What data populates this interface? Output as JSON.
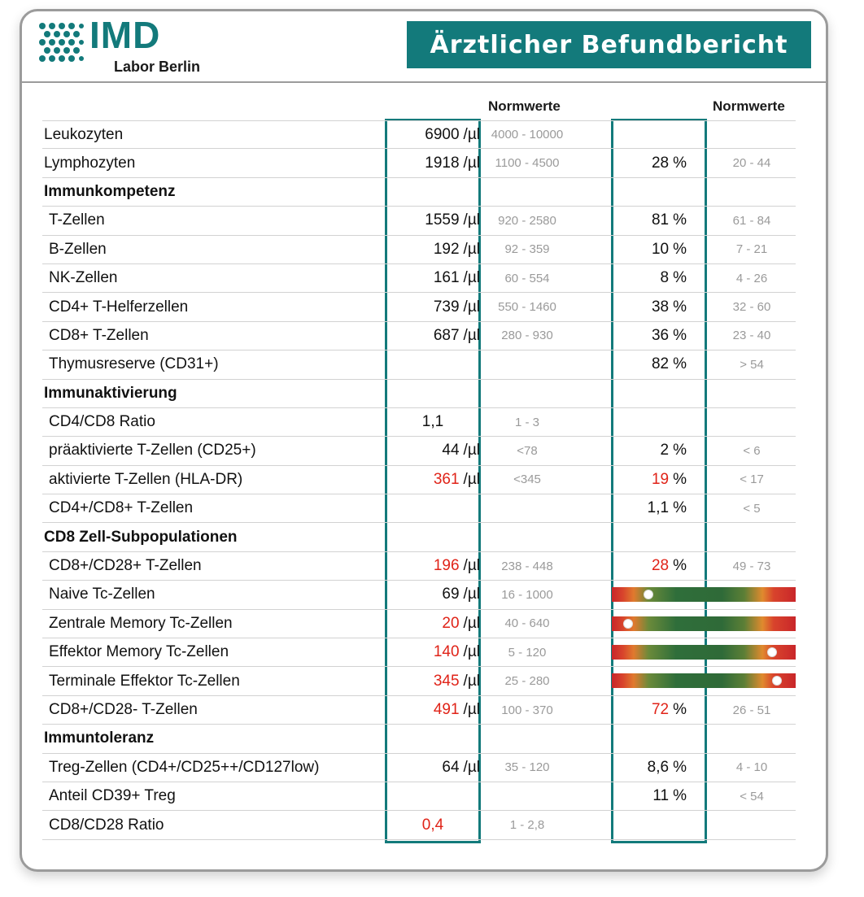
{
  "header": {
    "logo_text": "IMD",
    "logo_sub": "Labor Berlin",
    "title": "Ärztlicher Befundbericht"
  },
  "columns": {
    "norm_label_abs": "Normwerte",
    "norm_label_pct": "Normwerte"
  },
  "colors": {
    "accent": "#137a7b",
    "flag": "#e02318"
  },
  "rows": [
    {
      "label": "Leukozyten",
      "type": "item",
      "value": "6900",
      "unit": "/µl",
      "norm": "4000 - 10000",
      "pct": "",
      "pct_unit": "",
      "pnorm": ""
    },
    {
      "label": "Lymphozyten",
      "type": "item",
      "value": "1918",
      "unit": "/µl",
      "norm": "1100 - 4500",
      "pct": "28",
      "pct_unit": "%",
      "pnorm": "20 - 44"
    },
    {
      "label": "Immunkompetenz",
      "type": "section"
    },
    {
      "label": "T-Zellen",
      "type": "item",
      "value": "1559",
      "unit": "/µl",
      "norm": "920 - 2580",
      "pct": "81",
      "pct_unit": "%",
      "pnorm": "61 - 84"
    },
    {
      "label": "B-Zellen",
      "type": "item",
      "value": "192",
      "unit": "/µl",
      "norm": "92 - 359",
      "pct": "10",
      "pct_unit": "%",
      "pnorm": "7 - 21"
    },
    {
      "label": "NK-Zellen",
      "type": "item",
      "value": "161",
      "unit": "/µl",
      "norm": "60 - 554",
      "pct": "8",
      "pct_unit": "%",
      "pnorm": "4 - 26"
    },
    {
      "label": "CD4+ T-Helferzellen",
      "type": "item",
      "value": "739",
      "unit": "/µl",
      "norm": "550 - 1460",
      "pct": "38",
      "pct_unit": "%",
      "pnorm": "32 - 60"
    },
    {
      "label": "CD8+ T-Zellen",
      "type": "item",
      "value": "687",
      "unit": "/µl",
      "norm": "280 - 930",
      "pct": "36",
      "pct_unit": "%",
      "pnorm": "23 - 40"
    },
    {
      "label": "Thymusreserve (CD31+)",
      "type": "item",
      "value": "",
      "unit": "",
      "norm": "",
      "pct": "82",
      "pct_unit": "%",
      "pnorm": "> 54"
    },
    {
      "label": "Immunaktivierung",
      "type": "section"
    },
    {
      "label": "CD4/CD8 Ratio",
      "type": "item",
      "value": "1,1",
      "unit": "",
      "norm": "1 - 3",
      "pct": "",
      "pct_unit": "",
      "pnorm": "",
      "center": true
    },
    {
      "label": "präaktivierte T-Zellen (CD25+)",
      "type": "item",
      "value": "44",
      "unit": "/µl",
      "norm": "<78",
      "pct": "2",
      "pct_unit": "%",
      "pnorm": "< 6"
    },
    {
      "label": "aktivierte T-Zellen (HLA-DR)",
      "type": "item",
      "value": "361",
      "unit": "/µl",
      "norm": "<345",
      "pct": "19",
      "pct_unit": "%",
      "pnorm": "< 17",
      "value_flag": true,
      "pct_flag": true
    },
    {
      "label": "CD4+/CD8+ T-Zellen",
      "type": "item",
      "value": "",
      "unit": "",
      "norm": "",
      "pct": "1,1",
      "pct_unit": "%",
      "pnorm": "< 5"
    },
    {
      "label": "CD8 Zell-Subpopulationen",
      "type": "section"
    },
    {
      "label": "CD8+/CD28+ T-Zellen",
      "type": "item",
      "value": "196",
      "unit": "/µl",
      "norm": "238 - 448",
      "pct": "28",
      "pct_unit": "%",
      "pnorm": "49 - 73",
      "value_flag": true,
      "pct_flag": true
    },
    {
      "label": "Naive Tc-Zellen",
      "type": "item",
      "value": "69",
      "unit": "/µl",
      "norm": "16 - 1000",
      "bar": 0.2
    },
    {
      "label": "Zentrale Memory Tc-Zellen",
      "type": "item",
      "value": "20",
      "unit": "/µl",
      "norm": "40 - 640",
      "bar": 0.09,
      "value_flag": true
    },
    {
      "label": "Effektor Memory Tc-Zellen",
      "type": "item",
      "value": "140",
      "unit": "/µl",
      "norm": "5 - 120",
      "bar": 0.87,
      "value_flag": true
    },
    {
      "label": "Terminale Effektor Tc-Zellen",
      "type": "item",
      "value": "345",
      "unit": "/µl",
      "norm": "25 - 280",
      "bar": 0.9,
      "value_flag": true
    },
    {
      "label": "CD8+/CD28- T-Zellen",
      "type": "item",
      "value": "491",
      "unit": "/µl",
      "norm": "100 - 370",
      "pct": "72",
      "pct_unit": "%",
      "pnorm": "26 - 51",
      "value_flag": true,
      "pct_flag": true
    },
    {
      "label": "Immuntoleranz",
      "type": "section"
    },
    {
      "label": "Treg-Zellen (CD4+/CD25++/CD127low)",
      "type": "item",
      "value": "64",
      "unit": "/µl",
      "norm": "35 - 120",
      "pct": "8,6",
      "pct_unit": "%",
      "pnorm": "4 - 10"
    },
    {
      "label": "Anteil CD39+ Treg",
      "type": "item",
      "value": "",
      "unit": "",
      "norm": "",
      "pct": "11",
      "pct_unit": "%",
      "pnorm": "< 54"
    },
    {
      "label": "CD8/CD28 Ratio",
      "type": "item",
      "value": "0,4",
      "unit": "",
      "norm": "1 - 2,8",
      "pct": "",
      "pct_unit": "",
      "pnorm": "",
      "center": true,
      "value_flag": true
    }
  ]
}
